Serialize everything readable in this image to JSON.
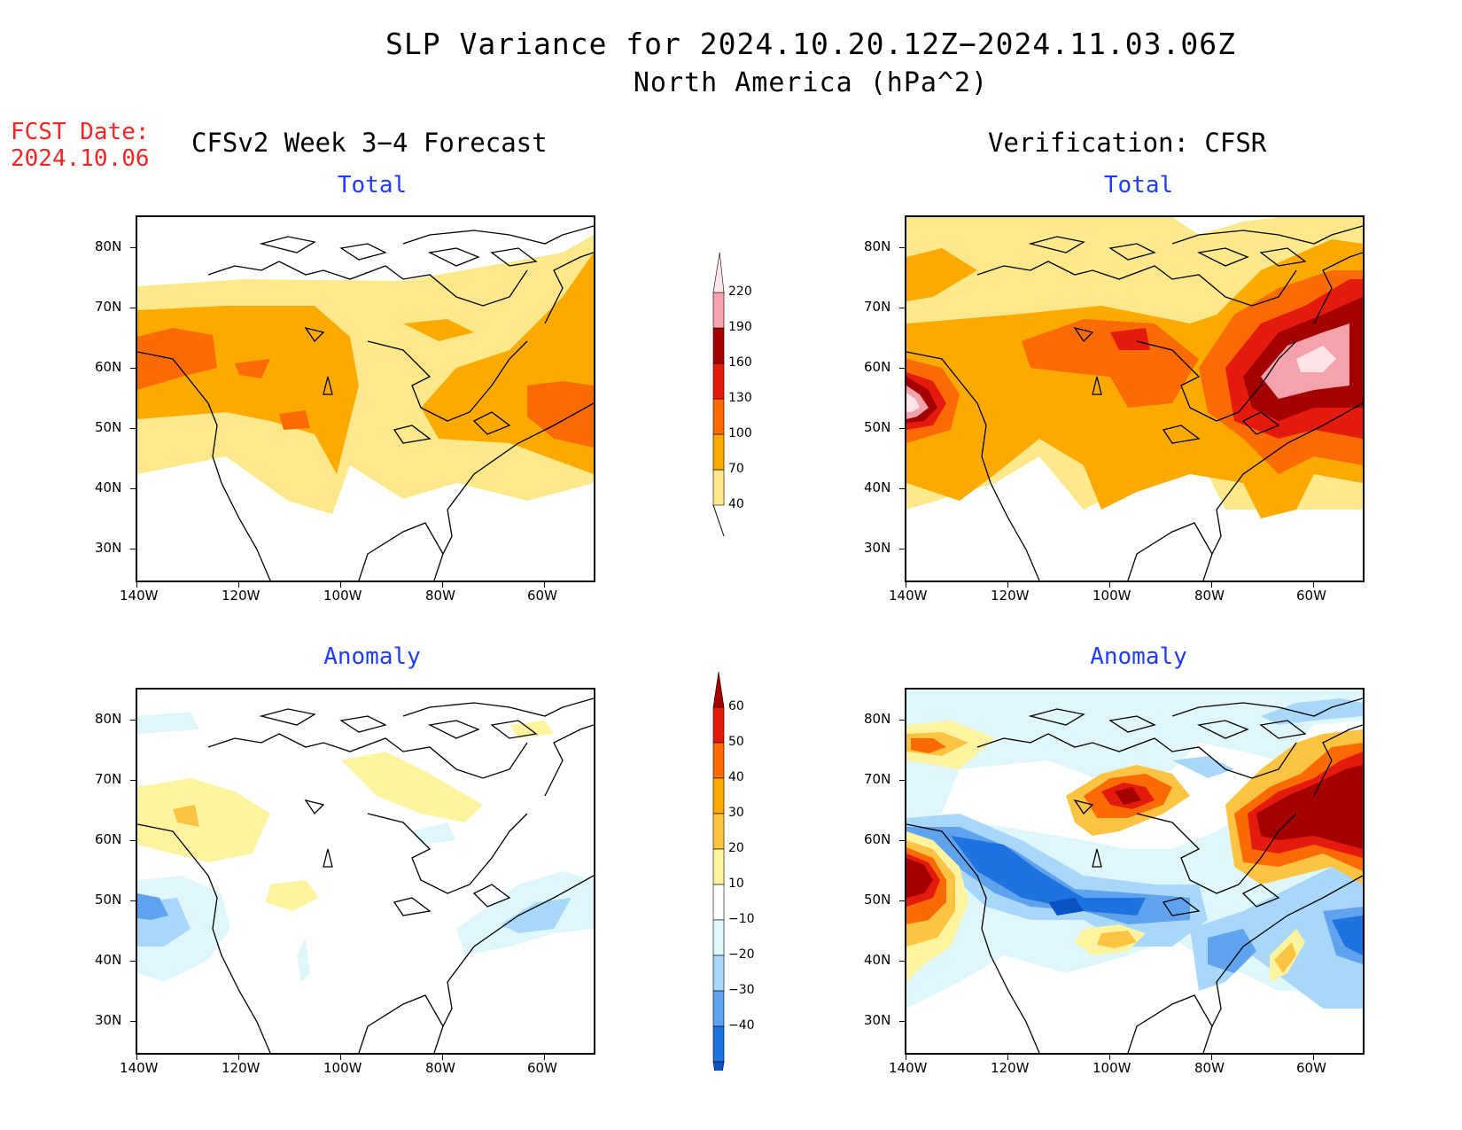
{
  "title": "SLP Variance for 2024.10.20.12Z−2024.11.03.06Z",
  "subtitle": "North America (hPa^2)",
  "fcst": {
    "label": "FCST Date:",
    "date": "2024.10.06"
  },
  "left_column_title": "CFSv2 Week 3−4 Forecast",
  "right_column_title": "Verification: CFSR",
  "panel_titles": {
    "total": "Total",
    "anomaly": "Anomaly"
  },
  "axes": {
    "lat_labels": [
      "80N",
      "70N",
      "60N",
      "50N",
      "40N",
      "30N"
    ],
    "lon_labels": [
      "140W",
      "120W",
      "100W",
      "80W",
      "60W"
    ]
  },
  "colorbars": {
    "total": {
      "levels": [
        "40",
        "70",
        "100",
        "130",
        "160",
        "190",
        "220"
      ],
      "colors": [
        "#fde98b",
        "#fcaa00",
        "#fb6b05",
        "#e31a0c",
        "#a50000",
        "#f4a3ac",
        "#fde4e6"
      ]
    },
    "anomaly": {
      "levels": [
        "60",
        "50",
        "40",
        "30",
        "20",
        "10",
        "−10",
        "−20",
        "−30",
        "−40"
      ],
      "colors": [
        "#a50000",
        "#e31a0c",
        "#fb6b05",
        "#fcaa00",
        "#fdc443",
        "#fef4a0",
        "#ffffff",
        "#dff7fb",
        "#a9d7f9",
        "#5fa3ef",
        "#1f73de",
        "#0a52c4"
      ]
    }
  },
  "chart_data": [
    {
      "type": "heatmap",
      "title": "Total",
      "column": "CFSv2 Week 3−4 Forecast",
      "units": "hPa^2",
      "xlim": [
        "140W",
        "50W"
      ],
      "ylim": [
        "25N",
        "85N"
      ]
    },
    {
      "type": "heatmap",
      "title": "Total",
      "column": "Verification: CFSR",
      "units": "hPa^2",
      "xlim": [
        "140W",
        "50W"
      ],
      "ylim": [
        "25N",
        "85N"
      ]
    },
    {
      "type": "heatmap",
      "title": "Anomaly",
      "column": "CFSv2 Week 3−4 Forecast",
      "units": "hPa^2",
      "xlim": [
        "140W",
        "50W"
      ],
      "ylim": [
        "25N",
        "85N"
      ]
    },
    {
      "type": "heatmap",
      "title": "Anomaly",
      "column": "Verification: CFSR",
      "units": "hPa^2",
      "xlim": [
        "140W",
        "50W"
      ],
      "ylim": [
        "25N",
        "85N"
      ]
    }
  ]
}
